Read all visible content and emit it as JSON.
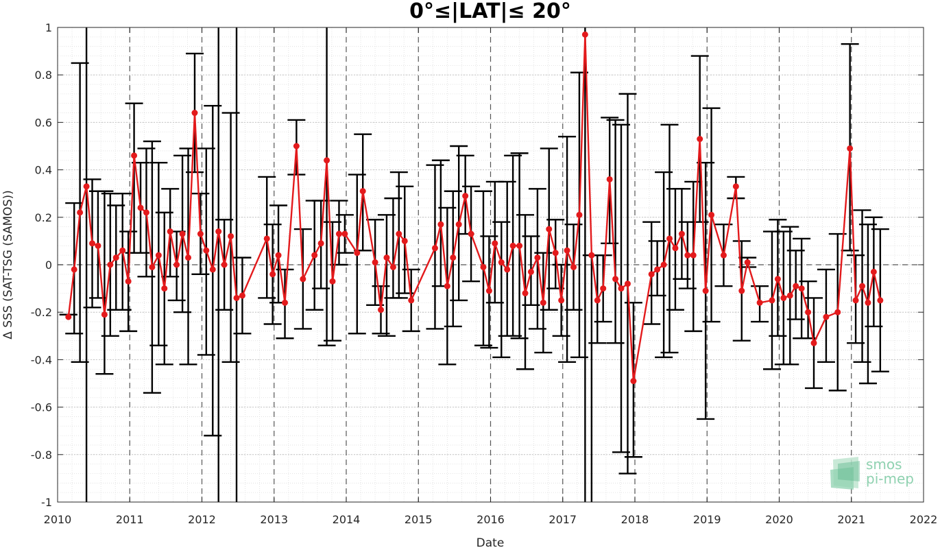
{
  "chart_data": {
    "type": "line",
    "title": "0°≤|LAT|≤ 20°",
    "xlabel": "Date",
    "ylabel": "Δ SSS (SAT-TSG (SAMOS))",
    "xlim": [
      2010,
      2022
    ],
    "ylim": [
      -1,
      1
    ],
    "x_ticks": [
      2010,
      2011,
      2012,
      2013,
      2014,
      2015,
      2016,
      2017,
      2018,
      2019,
      2020,
      2021,
      2022
    ],
    "x_tick_labels": [
      "2010",
      "2011",
      "2012",
      "2013",
      "2014",
      "2015",
      "2016",
      "2017",
      "2018",
      "2019",
      "2020",
      "2021",
      "2022"
    ],
    "y_ticks": [
      -1,
      -0.8,
      -0.6,
      -0.4,
      -0.2,
      0,
      0.2,
      0.4,
      0.6,
      0.8,
      1
    ],
    "y_tick_labels": [
      "-1",
      "-0.8",
      "-0.6",
      "-0.4",
      "-0.2",
      "0",
      "0.2",
      "0.4",
      "0.6",
      "0.8",
      "1"
    ],
    "grid": true,
    "year_separators": "dashed",
    "zero_line": "dashed",
    "series": [
      {
        "color": "#e31a1c",
        "errorbar_color": "#000000",
        "points": [
          {
            "x": 2010.15,
            "y": -0.22,
            "lo": -0.21,
            "hi": -0.21
          },
          {
            "x": 2010.23,
            "y": -0.02,
            "lo": -0.29,
            "hi": 0.26
          },
          {
            "x": 2010.31,
            "y": 0.22,
            "lo": -0.41,
            "hi": 0.85
          },
          {
            "x": 2010.4,
            "y": 0.33,
            "lo": -1.0,
            "hi": 1.0
          },
          {
            "x": 2010.48,
            "y": 0.09,
            "lo": -0.18,
            "hi": 0.36
          },
          {
            "x": 2010.56,
            "y": 0.08,
            "lo": -0.14,
            "hi": 0.31
          },
          {
            "x": 2010.65,
            "y": -0.21,
            "lo": -0.46,
            "hi": 0.31
          },
          {
            "x": 2010.73,
            "y": 0.0,
            "lo": -0.3,
            "hi": 0.3
          },
          {
            "x": 2010.81,
            "y": 0.03,
            "lo": -0.19,
            "hi": 0.25
          },
          {
            "x": 2010.9,
            "y": 0.06,
            "lo": -0.19,
            "hi": 0.3
          },
          {
            "x": 2010.98,
            "y": -0.07,
            "lo": -0.28,
            "hi": 0.14
          },
          {
            "x": 2011.06,
            "y": 0.46,
            "lo": 0.05,
            "hi": 0.68
          },
          {
            "x": 2011.15,
            "y": 0.24,
            "lo": 0.05,
            "hi": 0.43
          },
          {
            "x": 2011.23,
            "y": 0.22,
            "lo": -0.05,
            "hi": 0.49
          },
          {
            "x": 2011.31,
            "y": -0.01,
            "lo": -0.54,
            "hi": 0.52
          },
          {
            "x": 2011.4,
            "y": 0.04,
            "lo": -0.34,
            "hi": 0.43
          },
          {
            "x": 2011.48,
            "y": -0.1,
            "lo": -0.42,
            "hi": 0.22
          },
          {
            "x": 2011.56,
            "y": 0.14,
            "lo": -0.05,
            "hi": 0.32
          },
          {
            "x": 2011.65,
            "y": 0.0,
            "lo": -0.15,
            "hi": 0.14
          },
          {
            "x": 2011.73,
            "y": 0.13,
            "lo": -0.2,
            "hi": 0.46
          },
          {
            "x": 2011.81,
            "y": 0.03,
            "lo": -0.42,
            "hi": 0.49
          },
          {
            "x": 2011.9,
            "y": 0.64,
            "lo": 0.39,
            "hi": 0.89
          },
          {
            "x": 2011.98,
            "y": 0.13,
            "lo": -0.04,
            "hi": 0.3
          },
          {
            "x": 2012.06,
            "y": 0.06,
            "lo": -0.38,
            "hi": 0.49
          },
          {
            "x": 2012.15,
            "y": -0.02,
            "lo": -0.72,
            "hi": 0.67
          },
          {
            "x": 2012.23,
            "y": 0.14,
            "lo": -1.0,
            "hi": 1.0
          },
          {
            "x": 2012.31,
            "y": 0.0,
            "lo": -0.19,
            "hi": 0.19
          },
          {
            "x": 2012.4,
            "y": 0.12,
            "lo": -0.41,
            "hi": 0.64
          },
          {
            "x": 2012.48,
            "y": -0.14,
            "lo": -1.0,
            "hi": 1.0
          },
          {
            "x": 2012.56,
            "y": -0.13,
            "lo": -0.29,
            "hi": 0.03
          },
          {
            "x": 2012.9,
            "y": 0.11,
            "lo": -0.14,
            "hi": 0.37
          },
          {
            "x": 2012.98,
            "y": -0.04,
            "lo": -0.25,
            "hi": 0.17
          },
          {
            "x": 2013.06,
            "y": 0.04,
            "lo": -0.16,
            "hi": 0.25
          },
          {
            "x": 2013.15,
            "y": -0.16,
            "lo": -0.31,
            "hi": -0.02
          },
          {
            "x": 2013.31,
            "y": 0.5,
            "lo": 0.38,
            "hi": 0.61
          },
          {
            "x": 2013.4,
            "y": -0.06,
            "lo": -0.27,
            "hi": 0.15
          },
          {
            "x": 2013.56,
            "y": 0.04,
            "lo": -0.19,
            "hi": 0.27
          },
          {
            "x": 2013.65,
            "y": 0.09,
            "lo": -0.1,
            "hi": 0.27
          },
          {
            "x": 2013.73,
            "y": 0.44,
            "lo": -0.34,
            "hi": 1.0
          },
          {
            "x": 2013.81,
            "y": -0.07,
            "lo": -0.32,
            "hi": 0.18
          },
          {
            "x": 2013.9,
            "y": 0.13,
            "lo": 0.0,
            "hi": 0.27
          },
          {
            "x": 2013.98,
            "y": 0.13,
            "lo": 0.05,
            "hi": 0.21
          },
          {
            "x": 2014.15,
            "y": 0.05,
            "lo": -0.29,
            "hi": 0.38
          },
          {
            "x": 2014.23,
            "y": 0.31,
            "lo": 0.06,
            "hi": 0.55
          },
          {
            "x": 2014.4,
            "y": 0.01,
            "lo": -0.17,
            "hi": 0.19
          },
          {
            "x": 2014.48,
            "y": -0.19,
            "lo": -0.29,
            "hi": -0.09
          },
          {
            "x": 2014.56,
            "y": 0.03,
            "lo": -0.3,
            "hi": 0.21
          },
          {
            "x": 2014.65,
            "y": -0.01,
            "lo": -0.14,
            "hi": 0.28
          },
          {
            "x": 2014.73,
            "y": 0.13,
            "lo": -0.14,
            "hi": 0.39
          },
          {
            "x": 2014.81,
            "y": 0.1,
            "lo": -0.12,
            "hi": 0.33
          },
          {
            "x": 2014.9,
            "y": -0.15,
            "lo": -0.28,
            "hi": -0.02
          },
          {
            "x": 2015.23,
            "y": 0.07,
            "lo": -0.27,
            "hi": 0.42
          },
          {
            "x": 2015.31,
            "y": 0.17,
            "lo": -0.09,
            "hi": 0.44
          },
          {
            "x": 2015.4,
            "y": -0.09,
            "lo": -0.42,
            "hi": 0.24
          },
          {
            "x": 2015.48,
            "y": 0.03,
            "lo": -0.26,
            "hi": 0.31
          },
          {
            "x": 2015.56,
            "y": 0.17,
            "lo": -0.15,
            "hi": 0.5
          },
          {
            "x": 2015.65,
            "y": 0.29,
            "lo": 0.13,
            "hi": 0.46
          },
          {
            "x": 2015.73,
            "y": 0.13,
            "lo": -0.07,
            "hi": 0.33
          },
          {
            "x": 2015.9,
            "y": -0.01,
            "lo": -0.34,
            "hi": 0.31
          },
          {
            "x": 2015.98,
            "y": -0.11,
            "lo": -0.35,
            "hi": 0.12
          },
          {
            "x": 2016.06,
            "y": 0.09,
            "lo": -0.16,
            "hi": 0.35
          },
          {
            "x": 2016.15,
            "y": 0.01,
            "lo": -0.39,
            "hi": 0.18
          },
          {
            "x": 2016.23,
            "y": -0.02,
            "lo": -0.3,
            "hi": 0.35
          },
          {
            "x": 2016.31,
            "y": 0.08,
            "lo": -0.3,
            "hi": 0.46
          },
          {
            "x": 2016.4,
            "y": 0.08,
            "lo": -0.31,
            "hi": 0.47
          },
          {
            "x": 2016.48,
            "y": -0.12,
            "lo": -0.44,
            "hi": 0.21
          },
          {
            "x": 2016.56,
            "y": -0.03,
            "lo": -0.17,
            "hi": 0.12
          },
          {
            "x": 2016.65,
            "y": 0.03,
            "lo": -0.27,
            "hi": 0.32
          },
          {
            "x": 2016.73,
            "y": -0.16,
            "lo": -0.37,
            "hi": 0.05
          },
          {
            "x": 2016.81,
            "y": 0.15,
            "lo": -0.19,
            "hi": 0.49
          },
          {
            "x": 2016.9,
            "y": 0.05,
            "lo": -0.1,
            "hi": 0.19
          },
          {
            "x": 2016.98,
            "y": -0.15,
            "lo": -0.3,
            "hi": 0.0
          },
          {
            "x": 2017.06,
            "y": 0.06,
            "lo": -0.41,
            "hi": 0.54
          },
          {
            "x": 2017.15,
            "y": -0.01,
            "lo": -0.19,
            "hi": 0.17
          },
          {
            "x": 2017.23,
            "y": 0.21,
            "lo": -0.39,
            "hi": 0.81
          },
          {
            "x": 2017.31,
            "y": 0.97,
            "lo": -1.0,
            "hi": 1.0
          },
          {
            "x": 2017.4,
            "y": 0.04,
            "lo": -1.0,
            "hi": 0.04
          },
          {
            "x": 2017.48,
            "y": -0.15,
            "lo": -0.33,
            "hi": 0.04
          },
          {
            "x": 2017.56,
            "y": -0.1,
            "lo": -0.24,
            "hi": 0.04
          },
          {
            "x": 2017.65,
            "y": 0.36,
            "lo": 0.09,
            "hi": 0.62
          },
          {
            "x": 2017.73,
            "y": -0.06,
            "lo": -0.33,
            "hi": 0.61
          },
          {
            "x": 2017.81,
            "y": -0.1,
            "lo": -0.79,
            "hi": 0.59
          },
          {
            "x": 2017.9,
            "y": -0.08,
            "lo": -0.88,
            "hi": 0.72
          },
          {
            "x": 2017.98,
            "y": -0.49,
            "lo": -0.81,
            "hi": -0.16
          },
          {
            "x": 2018.23,
            "y": -0.04,
            "lo": -0.25,
            "hi": 0.18
          },
          {
            "x": 2018.31,
            "y": -0.02,
            "lo": -0.13,
            "hi": 0.1
          },
          {
            "x": 2018.4,
            "y": 0.0,
            "lo": -0.39,
            "hi": 0.39
          },
          {
            "x": 2018.48,
            "y": 0.11,
            "lo": -0.37,
            "hi": 0.59
          },
          {
            "x": 2018.56,
            "y": 0.07,
            "lo": -0.19,
            "hi": 0.32
          },
          {
            "x": 2018.65,
            "y": 0.13,
            "lo": -0.06,
            "hi": 0.32
          },
          {
            "x": 2018.73,
            "y": 0.04,
            "lo": -0.1,
            "hi": 0.18
          },
          {
            "x": 2018.81,
            "y": 0.04,
            "lo": -0.28,
            "hi": 0.35
          },
          {
            "x": 2018.9,
            "y": 0.53,
            "lo": 0.18,
            "hi": 0.88
          },
          {
            "x": 2018.98,
            "y": -0.11,
            "lo": -0.65,
            "hi": 0.43
          },
          {
            "x": 2019.06,
            "y": 0.21,
            "lo": -0.24,
            "hi": 0.66
          },
          {
            "x": 2019.23,
            "y": 0.04,
            "lo": -0.09,
            "hi": 0.17
          },
          {
            "x": 2019.4,
            "y": 0.33,
            "lo": 0.28,
            "hi": 0.37
          },
          {
            "x": 2019.48,
            "y": -0.11,
            "lo": -0.32,
            "hi": 0.1
          },
          {
            "x": 2019.56,
            "y": 0.01,
            "lo": -0.01,
            "hi": 0.03
          },
          {
            "x": 2019.73,
            "y": -0.16,
            "lo": -0.24,
            "hi": -0.09
          },
          {
            "x": 2019.9,
            "y": -0.15,
            "lo": -0.44,
            "hi": 0.14
          },
          {
            "x": 2019.98,
            "y": -0.06,
            "lo": -0.3,
            "hi": 0.19
          },
          {
            "x": 2020.06,
            "y": -0.14,
            "lo": -0.42,
            "hi": 0.14
          },
          {
            "x": 2020.15,
            "y": -0.13,
            "lo": -0.42,
            "hi": 0.16
          },
          {
            "x": 2020.23,
            "y": -0.09,
            "lo": -0.23,
            "hi": 0.06
          },
          {
            "x": 2020.31,
            "y": -0.1,
            "lo": -0.31,
            "hi": 0.11
          },
          {
            "x": 2020.4,
            "y": -0.2,
            "lo": -0.31,
            "hi": -0.07
          },
          {
            "x": 2020.48,
            "y": -0.33,
            "lo": -0.52,
            "hi": -0.14
          },
          {
            "x": 2020.65,
            "y": -0.22,
            "lo": -0.41,
            "hi": -0.02
          },
          {
            "x": 2020.81,
            "y": -0.2,
            "lo": -0.53,
            "hi": 0.13
          },
          {
            "x": 2020.98,
            "y": 0.49,
            "lo": 0.06,
            "hi": 0.93
          },
          {
            "x": 2021.06,
            "y": -0.15,
            "lo": -0.33,
            "hi": 0.04
          },
          {
            "x": 2021.15,
            "y": -0.09,
            "lo": -0.41,
            "hi": 0.23
          },
          {
            "x": 2021.23,
            "y": -0.16,
            "lo": -0.5,
            "hi": 0.17
          },
          {
            "x": 2021.31,
            "y": -0.03,
            "lo": -0.26,
            "hi": 0.2
          },
          {
            "x": 2021.4,
            "y": -0.15,
            "lo": -0.45,
            "hi": 0.15
          }
        ]
      }
    ]
  },
  "logo": {
    "line1": "smos",
    "line2": "pi-mep"
  }
}
